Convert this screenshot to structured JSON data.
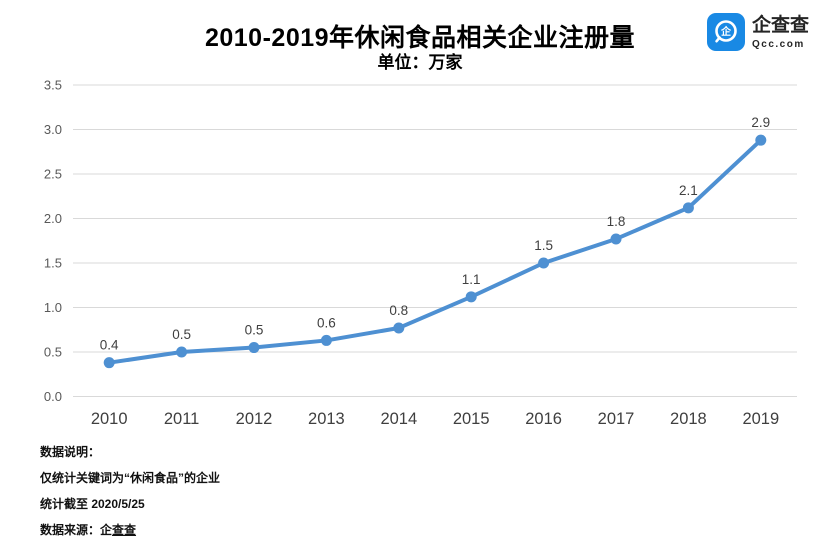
{
  "header": {
    "title": "2010-2019年休闲食品相关企业注册量",
    "subtitle": "单位：万家",
    "logo": {
      "name": "企查查",
      "domain": "Qcc.com",
      "brand_color": "#1989E4",
      "icon": "qcc-magnifier-icon"
    }
  },
  "chart_data": {
    "type": "line",
    "title": "2010-2019年休闲食品相关企业注册量",
    "unit_label": "单位：万家",
    "categories": [
      "2010",
      "2011",
      "2012",
      "2013",
      "2014",
      "2015",
      "2016",
      "2017",
      "2018",
      "2019"
    ],
    "values": [
      0.38,
      0.5,
      0.55,
      0.63,
      0.77,
      1.12,
      1.5,
      1.77,
      2.12,
      2.88
    ],
    "labels": [
      "0.4",
      "0.5",
      "0.5",
      "0.6",
      "0.8",
      "1.1",
      "1.5",
      "1.8",
      "2.1",
      "2.9"
    ],
    "ylim": [
      0,
      3.5
    ],
    "yticks": [
      "0.0",
      "0.5",
      "1.0",
      "1.5",
      "2.0",
      "2.5",
      "3.0",
      "3.5"
    ],
    "grid": true,
    "legend": "none",
    "line_color": "#4E90D2",
    "gridline_color": "#D9D9D9",
    "ytick_color": "#595959",
    "xtick_color": "#3F3F3F",
    "data_label_color": "#404040"
  },
  "notes": {
    "line1": "数据说明：",
    "line2": "仅统计关键词为“休闲食品”的企业",
    "line3": "统计截至 2020/5/25",
    "source_prefix": "数据来源：企",
    "source_underlined": "查查"
  }
}
